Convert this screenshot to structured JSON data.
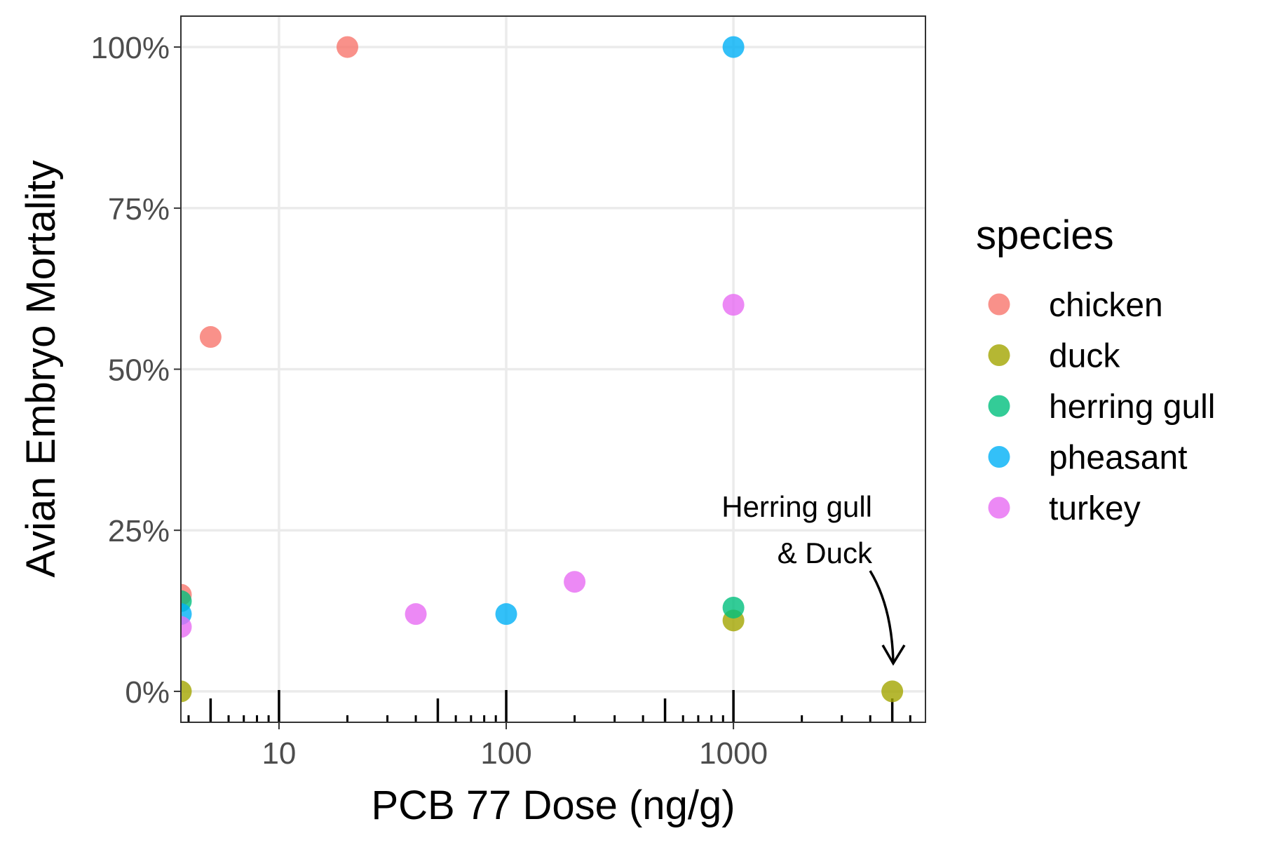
{
  "chart_data": {
    "type": "scatter",
    "xlabel": "PCB 77 Dose (ng/g)",
    "ylabel": "Avian Embryo Mortality",
    "x_scale": "log10",
    "xlim": [
      3.7,
      7000
    ],
    "ylim": [
      -0.048,
      1.048
    ],
    "x_ticks": [
      10,
      100,
      1000
    ],
    "x_tick_labels": [
      "10",
      "100",
      "1000"
    ],
    "y_ticks": [
      0,
      0.25,
      0.5,
      0.75,
      1.0
    ],
    "y_tick_labels": [
      "0%",
      "25%",
      "50%",
      "75%",
      "100%"
    ],
    "grid": true,
    "rug_x": [
      4,
      5,
      6,
      7,
      8,
      9,
      10,
      20,
      30,
      40,
      50,
      60,
      70,
      80,
      90,
      100,
      200,
      300,
      400,
      500,
      600,
      700,
      800,
      900,
      1000,
      2000,
      3000,
      4000,
      5000,
      6000
    ],
    "legend": {
      "title": "species",
      "position": "right",
      "entries": [
        {
          "name": "chicken",
          "color": "#F8766D"
        },
        {
          "name": "duck",
          "color": "#A3A500"
        },
        {
          "name": "herring gull",
          "color": "#00BF7D"
        },
        {
          "name": "pheasant",
          "color": "#00B0F6"
        },
        {
          "name": "turkey",
          "color": "#E76BF3"
        }
      ]
    },
    "series": [
      {
        "name": "chicken",
        "color": "#F8766D",
        "points": [
          {
            "x": 3.7,
            "y": 0.15
          },
          {
            "x": 5,
            "y": 0.55
          },
          {
            "x": 20,
            "y": 1.0
          }
        ]
      },
      {
        "name": "duck",
        "color": "#A3A500",
        "points": [
          {
            "x": 3.7,
            "y": 0.0
          },
          {
            "x": 1000,
            "y": 0.11
          },
          {
            "x": 5000,
            "y": 0.0
          }
        ]
      },
      {
        "name": "herring gull",
        "color": "#00BF7D",
        "points": [
          {
            "x": 3.7,
            "y": 0.14
          },
          {
            "x": 1000,
            "y": 0.13
          }
        ]
      },
      {
        "name": "pheasant",
        "color": "#00B0F6",
        "points": [
          {
            "x": 3.7,
            "y": 0.12
          },
          {
            "x": 100,
            "y": 0.12
          },
          {
            "x": 1000,
            "y": 1.0
          }
        ]
      },
      {
        "name": "turkey",
        "color": "#E76BF3",
        "points": [
          {
            "x": 3.7,
            "y": 0.1
          },
          {
            "x": 40,
            "y": 0.12
          },
          {
            "x": 200,
            "y": 0.17
          },
          {
            "x": 1000,
            "y": 0.6
          }
        ]
      }
    ],
    "annotations": [
      {
        "lines": [
          "Herring gull",
          "& Duck"
        ],
        "points_to": {
          "x": 5000,
          "y": 0.0
        }
      }
    ]
  }
}
